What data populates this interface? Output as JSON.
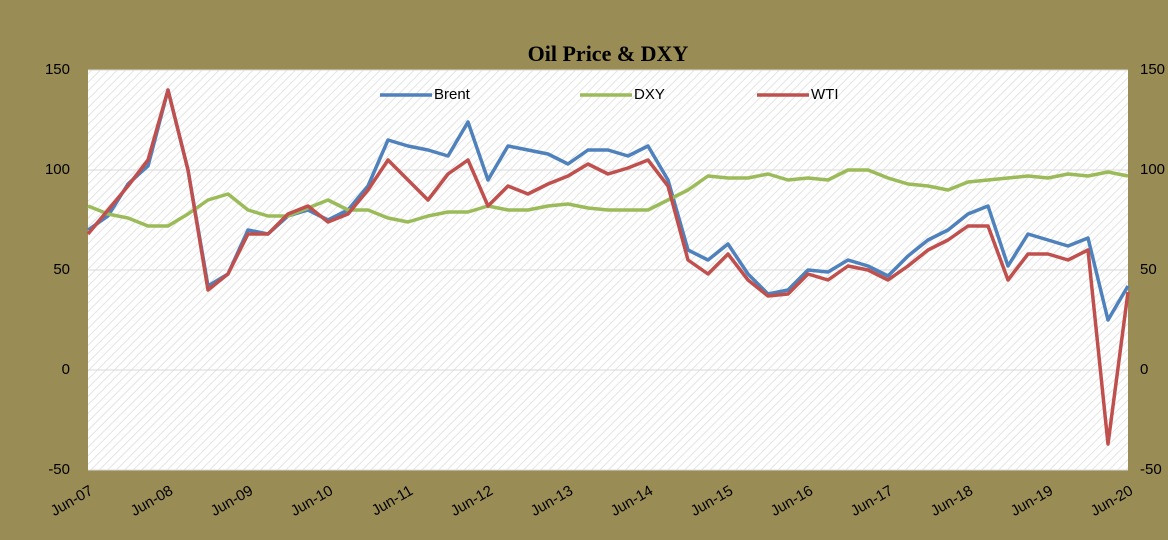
{
  "chart_data": {
    "type": "line",
    "title": "Oil Price & DXY",
    "categories": [
      "Jun-07",
      null,
      null,
      null,
      "Jun-08",
      null,
      null,
      null,
      "Jun-09",
      null,
      null,
      null,
      "Jun-10",
      null,
      null,
      null,
      "Jun-11",
      null,
      null,
      null,
      "Jun-12",
      null,
      null,
      null,
      "Jun-13",
      null,
      null,
      null,
      "Jun-14",
      null,
      null,
      null,
      "Jun-15",
      null,
      null,
      null,
      "Jun-16",
      null,
      null,
      null,
      "Jun-17",
      null,
      null,
      null,
      "Jun-18",
      null,
      null,
      null,
      "Jun-19",
      null,
      null,
      null,
      "Jun-20"
    ],
    "series": [
      {
        "name": "Brent",
        "color": "#4f81bd",
        "values": [
          70,
          77,
          93,
          102,
          140,
          100,
          42,
          48,
          70,
          68,
          77,
          80,
          75,
          80,
          92,
          115,
          112,
          110,
          107,
          124,
          95,
          112,
          110,
          108,
          103,
          110,
          110,
          107,
          112,
          95,
          60,
          55,
          63,
          48,
          38,
          40,
          50,
          49,
          55,
          52,
          47,
          57,
          65,
          70,
          78,
          82,
          52,
          68,
          65,
          62,
          66,
          25,
          42
        ]
      },
      {
        "name": "DXY",
        "color": "#9bbb59",
        "axis": "y2",
        "values": [
          82,
          78,
          76,
          72,
          72,
          78,
          85,
          88,
          80,
          77,
          77,
          81,
          85,
          80,
          80,
          76,
          74,
          77,
          79,
          79,
          82,
          80,
          80,
          82,
          83,
          81,
          80,
          80,
          80,
          85,
          90,
          97,
          96,
          96,
          98,
          95,
          96,
          95,
          100,
          100,
          96,
          93,
          92,
          90,
          94,
          95,
          96,
          97,
          96,
          98,
          97,
          99,
          97
        ]
      },
      {
        "name": "WTI",
        "color": "#c0504d",
        "values": [
          68,
          80,
          92,
          105,
          140,
          100,
          40,
          48,
          68,
          68,
          78,
          82,
          74,
          78,
          90,
          105,
          95,
          85,
          98,
          105,
          82,
          92,
          88,
          93,
          97,
          103,
          98,
          101,
          105,
          92,
          55,
          48,
          58,
          45,
          37,
          38,
          48,
          45,
          52,
          50,
          45,
          52,
          60,
          65,
          72,
          72,
          45,
          58,
          58,
          55,
          60,
          -37,
          39
        ]
      }
    ],
    "ylim": [
      -50,
      150
    ],
    "yticks": [
      -50,
      0,
      50,
      100,
      150
    ],
    "y2lim": [
      -50,
      150
    ],
    "y2ticks": [
      -50,
      0,
      50,
      100,
      150
    ],
    "grid": true,
    "legend": "top"
  }
}
